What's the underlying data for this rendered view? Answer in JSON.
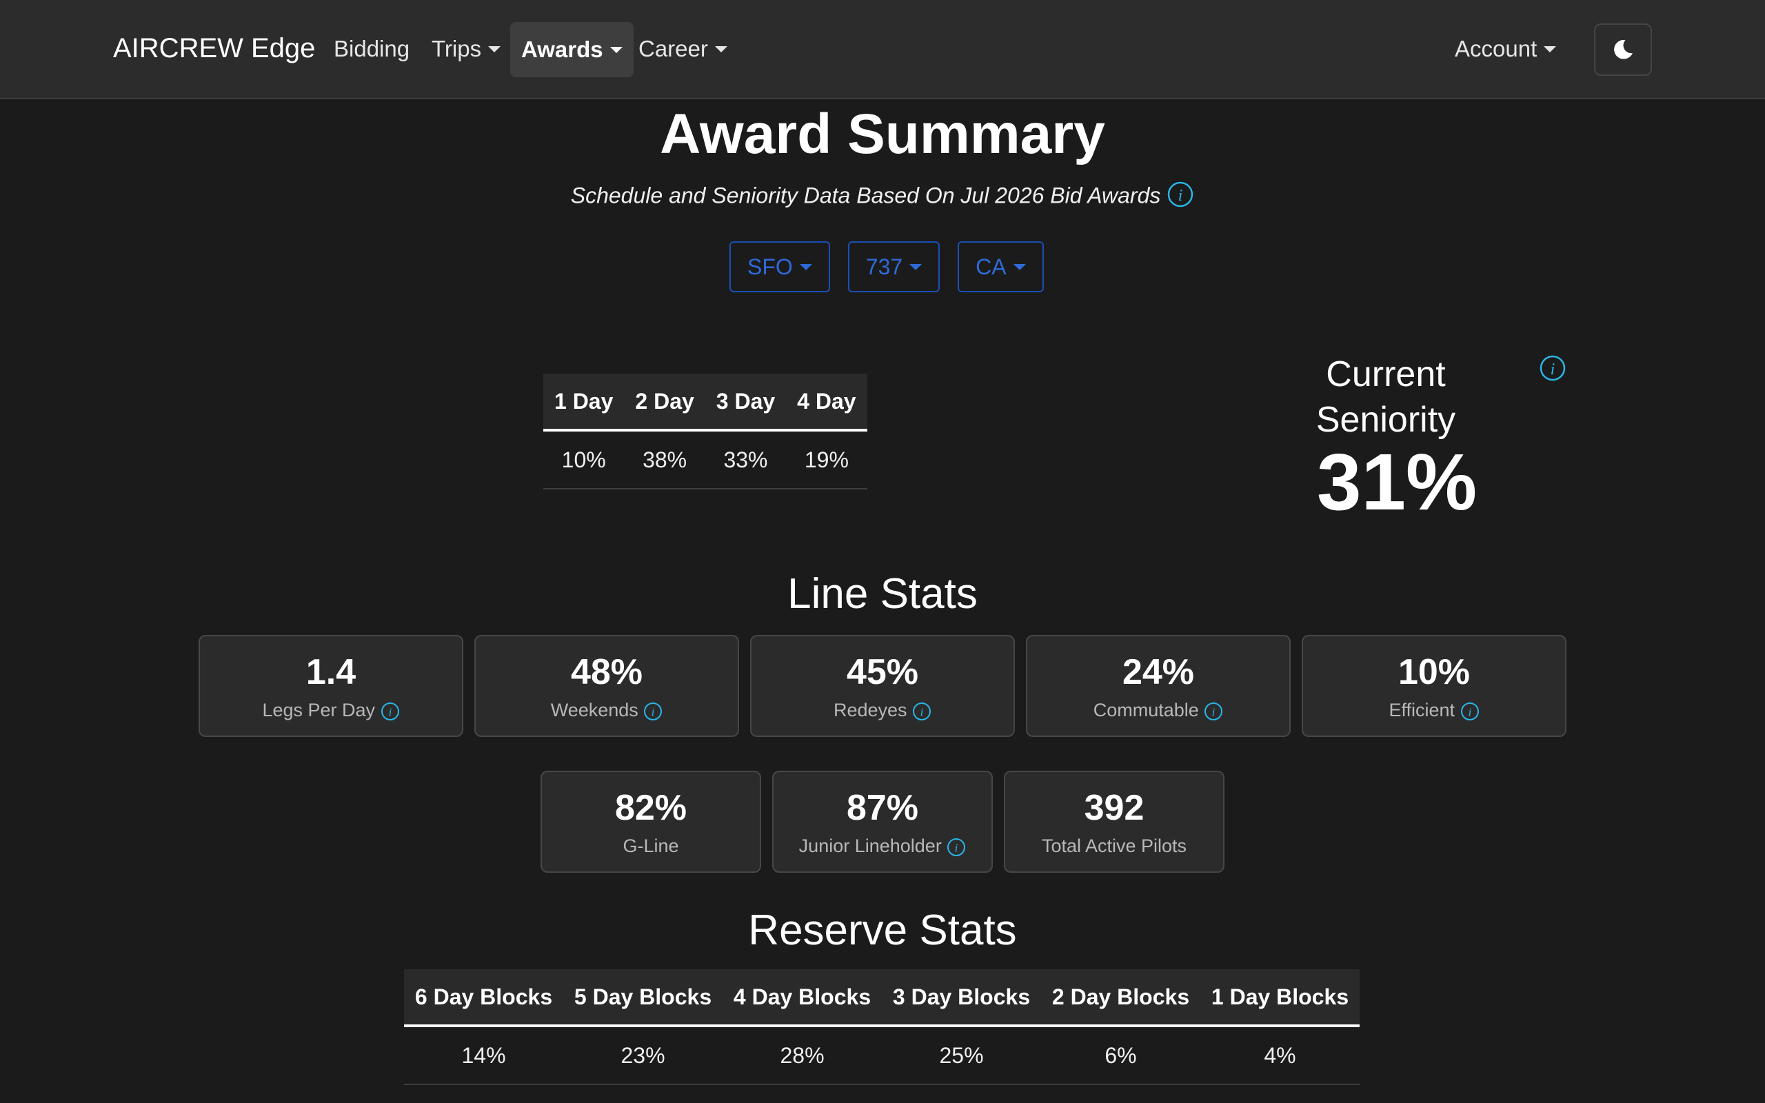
{
  "nav": {
    "brand": "AIRCREW Edge",
    "items": [
      {
        "label": "Bidding"
      },
      {
        "label": "Trips"
      },
      {
        "label": "Awards"
      },
      {
        "label": "Career"
      }
    ],
    "account_label": "Account"
  },
  "header": {
    "title": "Award Summary",
    "subtitle": "Schedule and Seniority Data Based On Jul 2026 Bid Awards"
  },
  "filters": {
    "base": "SFO",
    "fleet": "737",
    "seat": "CA"
  },
  "trip_length": {
    "headers": [
      "1 Day",
      "2 Day",
      "3 Day",
      "4 Day"
    ],
    "values": [
      "10%",
      "38%",
      "33%",
      "19%"
    ]
  },
  "seniority": {
    "label_line1": "Current",
    "label_line2": "Seniority",
    "value": "31%"
  },
  "line_stats": {
    "title": "Line Stats",
    "cards": [
      {
        "value": "1.4",
        "label": "Legs Per Day"
      },
      {
        "value": "48%",
        "label": "Weekends"
      },
      {
        "value": "45%",
        "label": "Redeyes"
      },
      {
        "value": "24%",
        "label": "Commutable"
      },
      {
        "value": "10%",
        "label": "Efficient"
      },
      {
        "value": "82%",
        "label": "G-Line"
      },
      {
        "value": "87%",
        "label": "Junior Lineholder"
      },
      {
        "value": "392",
        "label": "Total Active Pilots"
      }
    ]
  },
  "reserve_stats": {
    "title": "Reserve Stats",
    "headers": [
      "6 Day Blocks",
      "5 Day Blocks",
      "4 Day Blocks",
      "3 Day Blocks",
      "2 Day Blocks",
      "1 Day Blocks"
    ],
    "values": [
      "14%",
      "23%",
      "28%",
      "25%",
      "6%",
      "4%"
    ]
  },
  "colors": {
    "info_accent": "#29b6e8",
    "filter_blue": "#2f6ad8"
  }
}
